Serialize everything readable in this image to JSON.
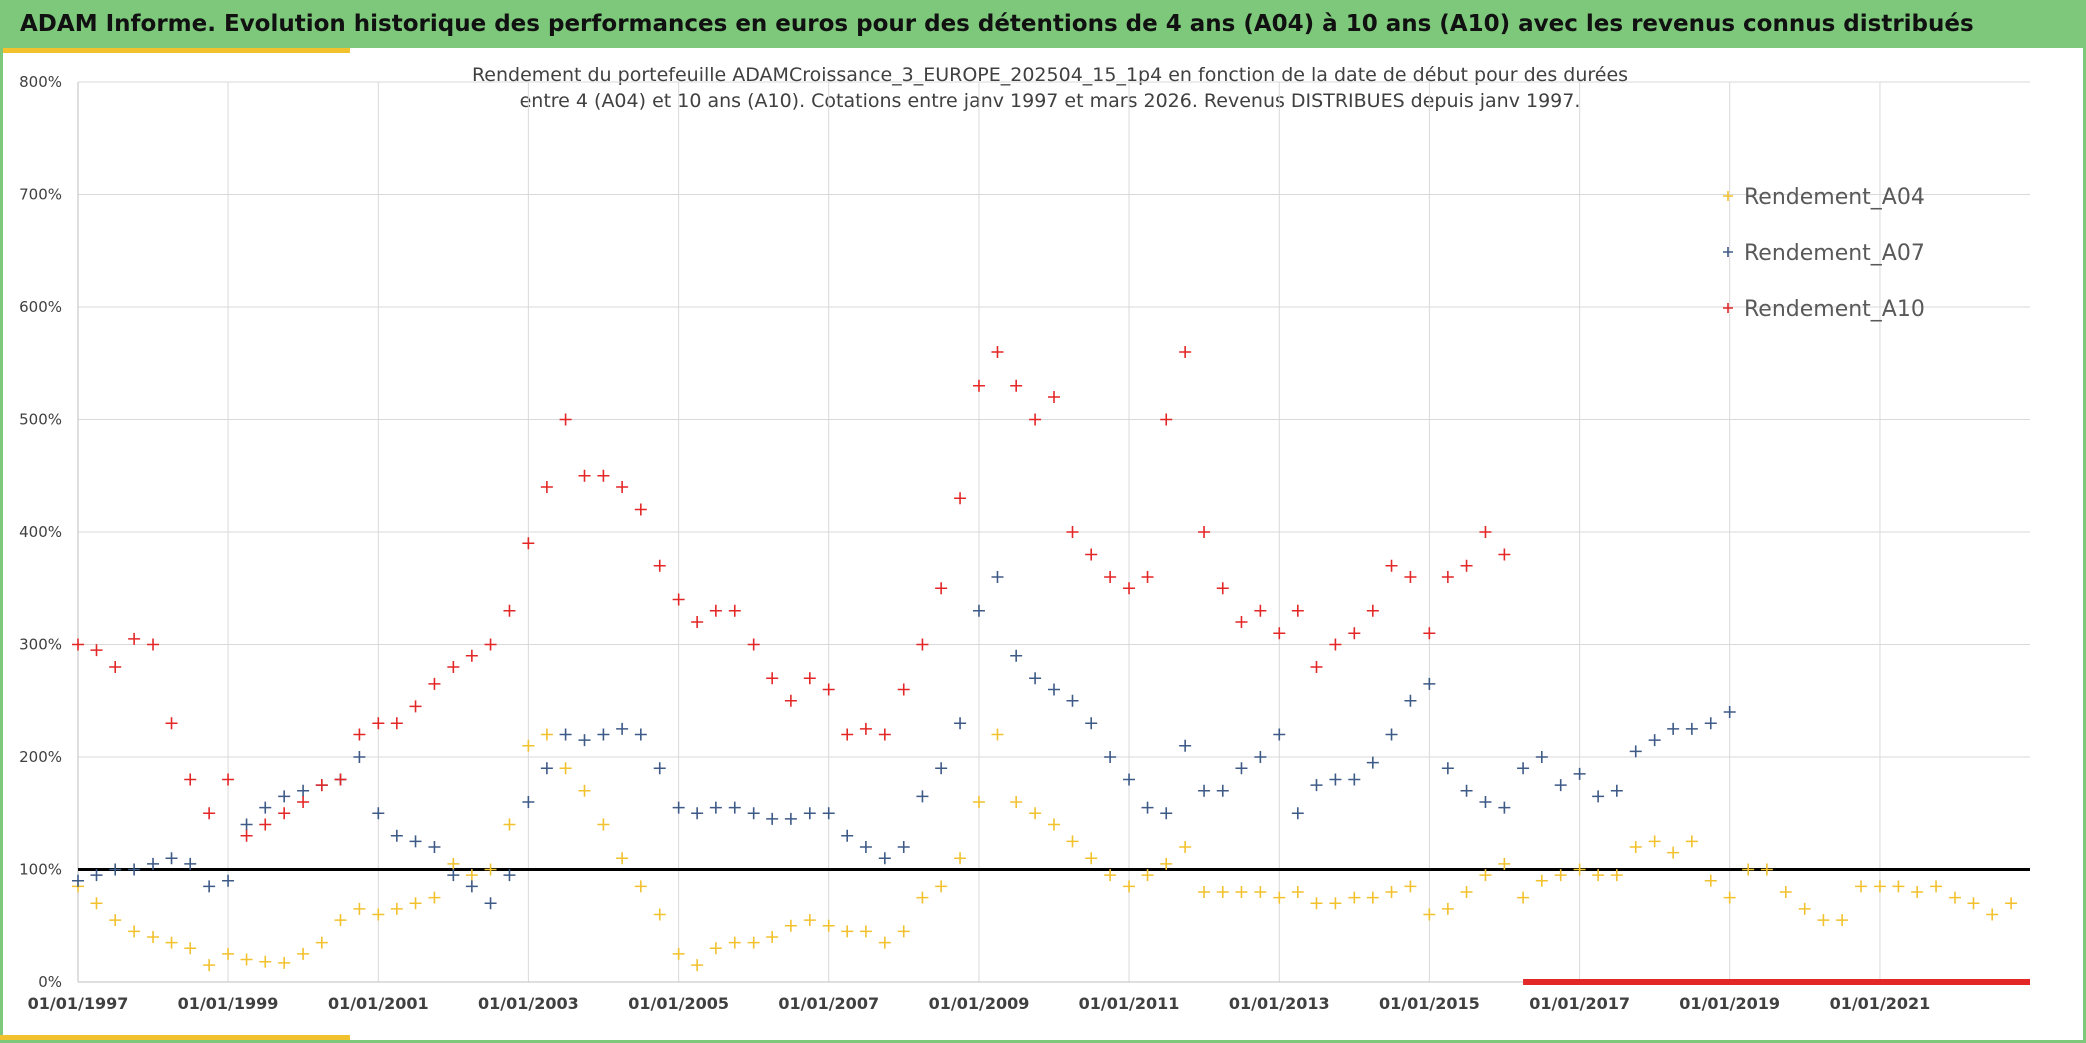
{
  "banner": {
    "title": "ADAM Informe. Evolution historique des performances en euros pour des détentions de 4 ans (A04) à 10 ans (A10) avec les revenus connus distribués"
  },
  "chart_data": {
    "type": "scatter",
    "title_line1": "Rendement du portefeuille ADAMCroissance_3_EUROPE_202504_15_1p4  en fonction de la date de début pour des durées",
    "title_line2": "entre 4 (A04) et 10 ans (A10). Cotations entre janv 1997 et mars 2026. Revenus DISTRIBUES depuis janv 1997.",
    "xlabel": "",
    "ylabel": "",
    "x_axis_type": "date",
    "xlim": [
      "1997-01-01",
      "2023-01-01"
    ],
    "ylim": [
      0,
      8
    ],
    "y_tick_labels": [
      "0%",
      "100%",
      "200%",
      "300%",
      "400%",
      "500%",
      "600%",
      "700%",
      "800%"
    ],
    "x_tick_labels": [
      "01/01/1997",
      "01/01/1999",
      "01/01/2001",
      "01/01/2003",
      "01/01/2005",
      "01/01/2007",
      "01/01/2009",
      "01/01/2011",
      "01/01/2013",
      "01/01/2015",
      "01/01/2017",
      "01/01/2019",
      "01/01/2021"
    ],
    "grid": true,
    "marker": "+",
    "legend_position": "top-right",
    "reference_line": {
      "y": 1.0,
      "color": "#000000"
    },
    "colors": {
      "A04": "#f2c12e",
      "A07": "#3e5a87",
      "A10": "#e32727"
    },
    "series": [
      {
        "name": "Rendement_A04",
        "color": "#f2c12e",
        "x": [
          "1997-01-01",
          "1997-04-01",
          "1997-07-01",
          "1997-10-01",
          "1998-01-01",
          "1998-04-01",
          "1998-07-01",
          "1998-10-01",
          "1999-01-01",
          "1999-04-01",
          "1999-07-01",
          "1999-10-01",
          "2000-01-01",
          "2000-04-01",
          "2000-07-01",
          "2000-10-01",
          "2001-01-01",
          "2001-04-01",
          "2001-07-01",
          "2001-10-01",
          "2002-01-01",
          "2002-04-01",
          "2002-07-01",
          "2002-10-01",
          "2003-01-01",
          "2003-04-01",
          "2003-07-01",
          "2003-10-01",
          "2004-01-01",
          "2004-04-01",
          "2004-07-01",
          "2004-10-01",
          "2005-01-01",
          "2005-04-01",
          "2005-07-01",
          "2005-10-01",
          "2006-01-01",
          "2006-04-01",
          "2006-07-01",
          "2006-10-01",
          "2007-01-01",
          "2007-04-01",
          "2007-07-01",
          "2007-10-01",
          "2008-01-01",
          "2008-04-01",
          "2008-07-01",
          "2008-10-01",
          "2009-01-01",
          "2009-04-01",
          "2009-07-01",
          "2009-10-01",
          "2010-01-01",
          "2010-04-01",
          "2010-07-01",
          "2010-10-01",
          "2011-01-01",
          "2011-04-01",
          "2011-07-01",
          "2011-10-01",
          "2012-01-01",
          "2012-04-01",
          "2012-07-01",
          "2012-10-01",
          "2013-01-01",
          "2013-04-01",
          "2013-07-01",
          "2013-10-01",
          "2014-01-01",
          "2014-04-01",
          "2014-07-01",
          "2014-10-01",
          "2015-01-01",
          "2015-04-01",
          "2015-07-01",
          "2015-10-01",
          "2016-01-01",
          "2016-04-01",
          "2016-07-01",
          "2016-10-01",
          "2017-01-01",
          "2017-04-01",
          "2017-07-01",
          "2017-10-01",
          "2018-01-01",
          "2018-04-01",
          "2018-07-01",
          "2018-10-01",
          "2019-01-01",
          "2019-04-01",
          "2019-07-01",
          "2019-10-01",
          "2020-01-01",
          "2020-04-01",
          "2020-07-01",
          "2020-10-01",
          "2021-01-01",
          "2021-04-01",
          "2021-07-01",
          "2021-10-01",
          "2022-01-01",
          "2022-04-01",
          "2022-07-01",
          "2022-10-01"
        ],
        "y": [
          0.85,
          0.7,
          0.55,
          0.45,
          0.4,
          0.35,
          0.3,
          0.15,
          0.25,
          0.2,
          0.18,
          0.17,
          0.25,
          0.35,
          0.55,
          0.65,
          0.6,
          0.65,
          0.7,
          0.75,
          1.05,
          0.95,
          1.0,
          1.4,
          2.1,
          2.2,
          1.9,
          1.7,
          1.4,
          1.1,
          0.85,
          0.6,
          0.25,
          0.15,
          0.3,
          0.35,
          0.35,
          0.4,
          0.5,
          0.55,
          0.5,
          0.45,
          0.45,
          0.35,
          0.45,
          0.75,
          0.85,
          1.1,
          1.6,
          2.2,
          1.6,
          1.5,
          1.4,
          1.25,
          1.1,
          0.95,
          0.85,
          0.95,
          1.05,
          1.2,
          0.8,
          0.8,
          0.8,
          0.8,
          0.75,
          0.8,
          0.7,
          0.7,
          0.75,
          0.75,
          0.8,
          0.85,
          0.6,
          0.65,
          0.8,
          0.95,
          1.05,
          0.75,
          0.9,
          0.95,
          1.0,
          0.95,
          0.95,
          1.2,
          1.25,
          1.15,
          1.25,
          0.9,
          0.75,
          1.0,
          1.0,
          0.8,
          0.65,
          0.55,
          0.55,
          0.85,
          0.85,
          0.85,
          0.8,
          0.85,
          0.75,
          0.7,
          0.6,
          0.7
        ]
      },
      {
        "name": "Rendement_A07",
        "color": "#3e5a87",
        "x": [
          "1997-01-01",
          "1997-04-01",
          "1997-07-01",
          "1997-10-01",
          "1998-01-01",
          "1998-04-01",
          "1998-07-01",
          "1998-10-01",
          "1999-01-01",
          "1999-04-01",
          "1999-07-01",
          "1999-10-01",
          "2000-01-01",
          "2000-04-01",
          "2000-07-01",
          "2000-10-01",
          "2001-01-01",
          "2001-04-01",
          "2001-07-01",
          "2001-10-01",
          "2002-01-01",
          "2002-04-01",
          "2002-07-01",
          "2002-10-01",
          "2003-01-01",
          "2003-04-01",
          "2003-07-01",
          "2003-10-01",
          "2004-01-01",
          "2004-04-01",
          "2004-07-01",
          "2004-10-01",
          "2005-01-01",
          "2005-04-01",
          "2005-07-01",
          "2005-10-01",
          "2006-01-01",
          "2006-04-01",
          "2006-07-01",
          "2006-10-01",
          "2007-01-01",
          "2007-04-01",
          "2007-07-01",
          "2007-10-01",
          "2008-01-01",
          "2008-04-01",
          "2008-07-01",
          "2008-10-01",
          "2009-01-01",
          "2009-04-01",
          "2009-07-01",
          "2009-10-01",
          "2010-01-01",
          "2010-04-01",
          "2010-07-01",
          "2010-10-01",
          "2011-01-01",
          "2011-04-01",
          "2011-07-01",
          "2011-10-01",
          "2012-01-01",
          "2012-04-01",
          "2012-07-01",
          "2012-10-01",
          "2013-01-01",
          "2013-04-01",
          "2013-07-01",
          "2013-10-01",
          "2014-01-01",
          "2014-04-01",
          "2014-07-01",
          "2014-10-01",
          "2015-01-01",
          "2015-04-01",
          "2015-07-01",
          "2015-10-01",
          "2016-01-01",
          "2016-04-01",
          "2016-07-01",
          "2016-10-01",
          "2017-01-01",
          "2017-04-01",
          "2017-07-01",
          "2017-10-01",
          "2018-01-01",
          "2018-04-01",
          "2018-07-01",
          "2018-10-01",
          "2019-01-01"
        ],
        "y": [
          0.9,
          0.95,
          1.0,
          1.0,
          1.05,
          1.1,
          1.05,
          0.85,
          0.9,
          1.4,
          1.55,
          1.65,
          1.7,
          1.75,
          1.8,
          2.0,
          1.5,
          1.3,
          1.25,
          1.2,
          0.95,
          0.85,
          0.7,
          0.95,
          1.6,
          1.9,
          2.2,
          2.15,
          2.2,
          2.25,
          2.2,
          1.9,
          1.55,
          1.5,
          1.55,
          1.55,
          1.5,
          1.45,
          1.45,
          1.5,
          1.5,
          1.3,
          1.2,
          1.1,
          1.2,
          1.65,
          1.9,
          2.3,
          3.3,
          3.6,
          2.9,
          2.7,
          2.6,
          2.5,
          2.3,
          2.0,
          1.8,
          1.55,
          1.5,
          2.1,
          1.7,
          1.7,
          1.9,
          2.0,
          2.2,
          1.5,
          1.75,
          1.8,
          1.8,
          1.95,
          2.2,
          2.5,
          2.65,
          1.9,
          1.7,
          1.6,
          1.55,
          1.9,
          2.0,
          1.75,
          1.85,
          1.65,
          1.7,
          2.05,
          2.15,
          2.25,
          2.25,
          2.3,
          2.4
        ]
      },
      {
        "name": "Rendement_A10",
        "color": "#e32727",
        "x": [
          "1997-01-01",
          "1997-04-01",
          "1997-07-01",
          "1997-10-01",
          "1998-01-01",
          "1998-04-01",
          "1998-07-01",
          "1998-10-01",
          "1999-01-01",
          "1999-04-01",
          "1999-07-01",
          "1999-10-01",
          "2000-01-01",
          "2000-04-01",
          "2000-07-01",
          "2000-10-01",
          "2001-01-01",
          "2001-04-01",
          "2001-07-01",
          "2001-10-01",
          "2002-01-01",
          "2002-04-01",
          "2002-07-01",
          "2002-10-01",
          "2003-01-01",
          "2003-04-01",
          "2003-07-01",
          "2003-10-01",
          "2004-01-01",
          "2004-04-01",
          "2004-07-01",
          "2004-10-01",
          "2005-01-01",
          "2005-04-01",
          "2005-07-01",
          "2005-10-01",
          "2006-01-01",
          "2006-04-01",
          "2006-07-01",
          "2006-10-01",
          "2007-01-01",
          "2007-04-01",
          "2007-07-01",
          "2007-10-01",
          "2008-01-01",
          "2008-04-01",
          "2008-07-01",
          "2008-10-01",
          "2009-01-01",
          "2009-04-01",
          "2009-07-01",
          "2009-10-01",
          "2010-01-01",
          "2010-04-01",
          "2010-07-01",
          "2010-10-01",
          "2011-01-01",
          "2011-04-01",
          "2011-07-01",
          "2011-10-01",
          "2012-01-01",
          "2012-04-01",
          "2012-07-01",
          "2012-10-01",
          "2013-01-01",
          "2013-04-01",
          "2013-07-01",
          "2013-10-01",
          "2014-01-01",
          "2014-04-01",
          "2014-07-01",
          "2014-10-01",
          "2015-01-01",
          "2015-04-01",
          "2015-07-01",
          "2015-10-01",
          "2016-01-01"
        ],
        "y": [
          3.0,
          2.95,
          2.8,
          3.05,
          3.0,
          2.3,
          1.8,
          1.5,
          1.8,
          1.3,
          1.4,
          1.5,
          1.6,
          1.75,
          1.8,
          2.2,
          2.3,
          2.3,
          2.45,
          2.65,
          2.8,
          2.9,
          3.0,
          3.3,
          3.9,
          4.4,
          5.0,
          4.5,
          4.5,
          4.4,
          4.2,
          3.7,
          3.4,
          3.2,
          3.3,
          3.3,
          3.0,
          2.7,
          2.5,
          2.7,
          2.6,
          2.2,
          2.25,
          2.2,
          2.6,
          3.0,
          3.5,
          4.3,
          5.3,
          5.6,
          5.3,
          5.0,
          5.2,
          4.0,
          3.8,
          3.6,
          3.5,
          3.6,
          5.0,
          5.6,
          4.0,
          3.5,
          3.2,
          3.3,
          3.1,
          3.3,
          2.8,
          3.0,
          3.1,
          3.3,
          3.7,
          3.6,
          3.1,
          3.6,
          3.7,
          4.0,
          3.8
        ]
      }
    ]
  }
}
